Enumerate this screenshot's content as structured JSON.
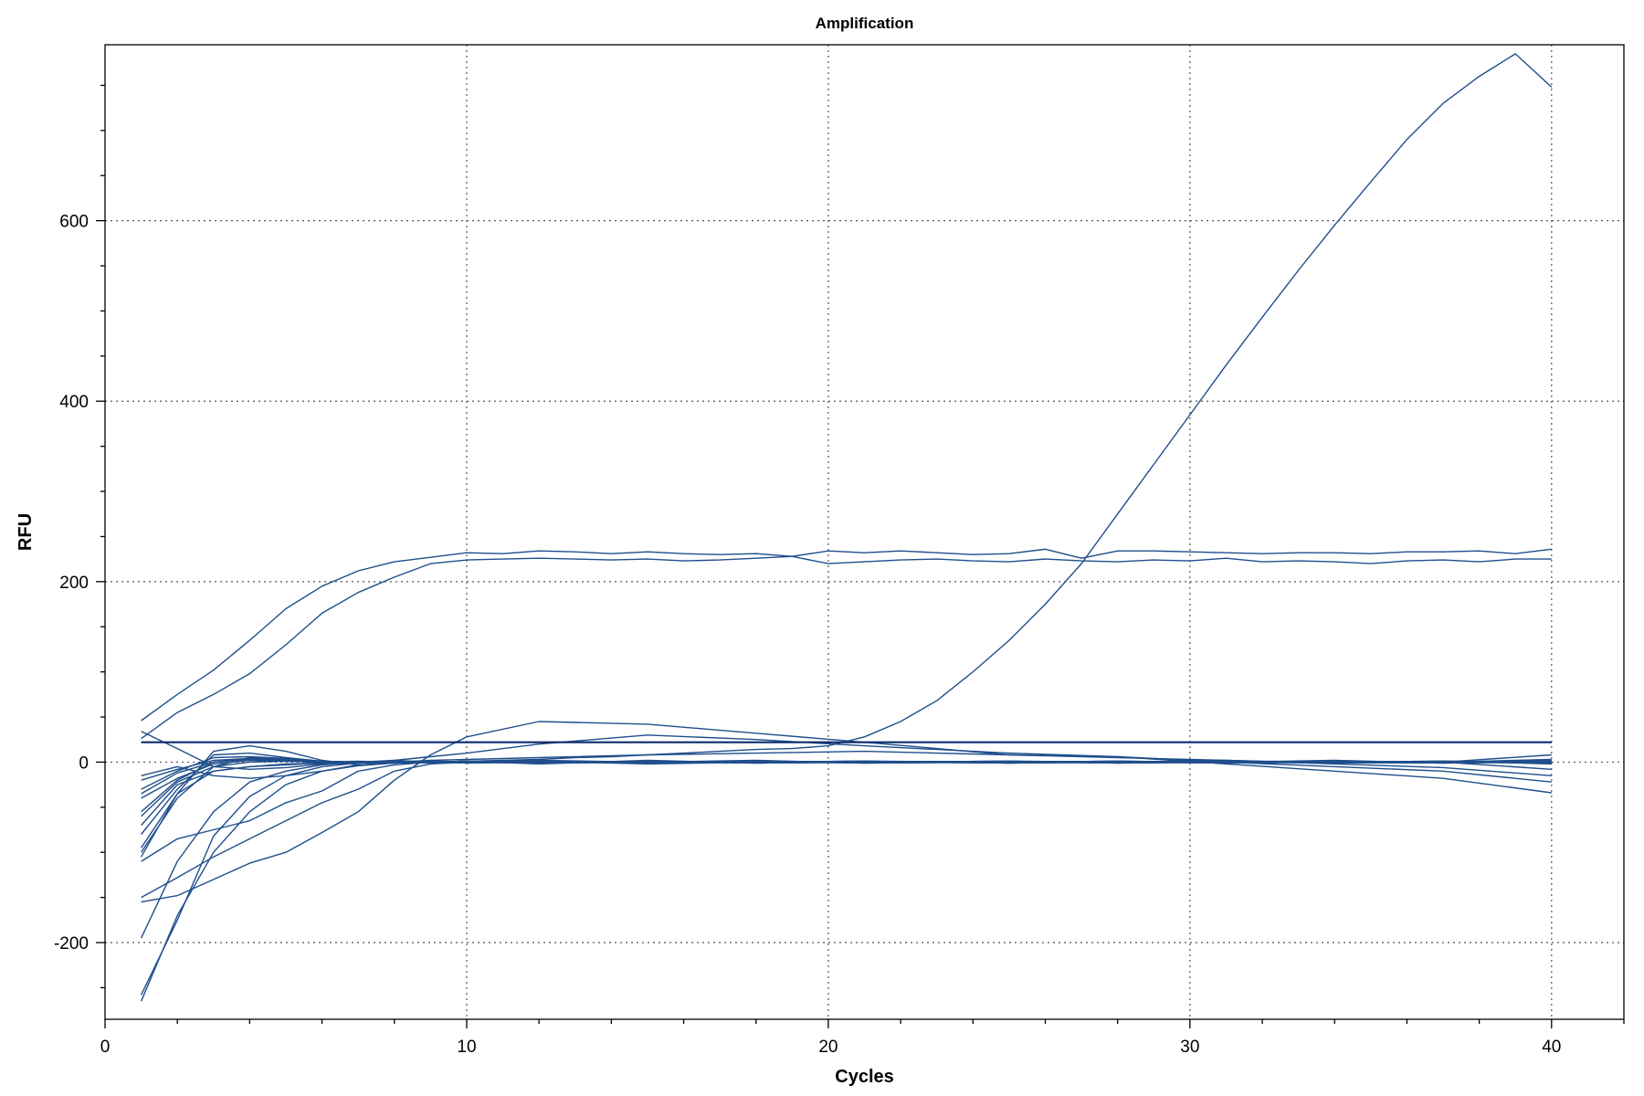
{
  "chart_data": {
    "type": "line",
    "title": "Amplification",
    "xlabel": "Cycles",
    "ylabel": "RFU",
    "xlim": [
      0,
      42
    ],
    "ylim": [
      -285,
      795
    ],
    "x_ticks": [
      0,
      10,
      20,
      30,
      40
    ],
    "y_ticks": [
      -200,
      0,
      200,
      400,
      600
    ],
    "x_minor_step": 2,
    "y_minor_step": 50,
    "grid": true,
    "line_color": "#1f4e8c",
    "threshold": {
      "value": 22,
      "color": "#0d2c6e"
    },
    "series": [
      {
        "x": [
          1,
          2,
          3,
          4,
          5,
          6,
          7,
          8,
          9,
          10,
          12,
          15,
          18,
          21,
          25,
          28,
          31,
          34,
          37,
          40
        ],
        "values": [
          -265,
          -170,
          -100,
          -55,
          -25,
          -10,
          -3,
          -1,
          0,
          1,
          -2,
          2,
          -1,
          0,
          1,
          -1,
          0,
          2,
          -1,
          1
        ]
      },
      {
        "x": [
          1,
          2,
          3,
          4,
          5,
          6,
          7,
          8,
          9,
          10,
          12,
          15,
          18,
          21,
          25,
          28,
          31,
          34,
          37,
          40
        ],
        "values": [
          -258,
          -175,
          -82,
          -38,
          -15,
          -5,
          -1,
          2,
          0,
          -1,
          1,
          -2,
          0,
          1,
          -1,
          0,
          2,
          -1,
          0,
          3
        ]
      },
      {
        "x": [
          1,
          2,
          3,
          4,
          5,
          6,
          7,
          8,
          9,
          10,
          12,
          15,
          18,
          21,
          25,
          28,
          31,
          34,
          37,
          40
        ],
        "values": [
          -195,
          -110,
          -55,
          -22,
          -10,
          -3,
          0,
          1,
          -1,
          0,
          2,
          0,
          -1,
          0,
          1,
          -1,
          0,
          1,
          0,
          2
        ]
      },
      {
        "x": [
          1,
          2,
          3,
          4,
          5,
          6,
          7,
          8,
          9,
          10,
          12,
          15,
          18,
          21,
          25,
          28,
          31,
          34,
          37,
          40
        ],
        "values": [
          -155,
          -148,
          -130,
          -112,
          -100,
          -78,
          -55,
          -20,
          8,
          28,
          45,
          42,
          32,
          22,
          8,
          6,
          -2,
          -10,
          -18,
          -34
        ]
      },
      {
        "x": [
          1,
          2,
          3,
          4,
          5,
          6,
          7,
          8,
          9,
          10,
          12,
          15,
          18,
          21,
          25,
          28,
          31,
          34,
          37,
          40
        ],
        "values": [
          -150,
          -128,
          -105,
          -85,
          -65,
          -45,
          -30,
          -10,
          -2,
          0,
          1,
          -1,
          0,
          1,
          0,
          -1,
          1,
          0,
          -1,
          0
        ]
      },
      {
        "x": [
          1,
          2,
          3,
          4,
          5,
          6,
          7,
          8,
          9,
          10,
          12,
          15,
          18,
          21,
          25,
          28,
          31,
          34,
          37,
          40
        ],
        "values": [
          -110,
          -85,
          -75,
          -65,
          -45,
          -32,
          -10,
          -3,
          0,
          1,
          -1,
          0,
          2,
          -1,
          0,
          1,
          0,
          -1,
          1,
          0
        ]
      },
      {
        "x": [
          1,
          2,
          3,
          4,
          5,
          6,
          7,
          8,
          9,
          10,
          12,
          15,
          18,
          21,
          25,
          28,
          31,
          34,
          37,
          40
        ],
        "values": [
          -100,
          -40,
          -5,
          5,
          3,
          -2,
          -1,
          0,
          1,
          0,
          -1,
          1,
          0,
          -1,
          0,
          1,
          -1,
          0,
          1,
          -1
        ]
      },
      {
        "x": [
          1,
          2,
          3,
          4,
          5,
          6,
          7,
          8,
          9,
          10,
          12,
          15,
          18,
          21,
          25,
          28,
          31,
          34,
          37,
          40
        ],
        "values": [
          -95,
          -35,
          12,
          18,
          12,
          2,
          -3,
          -1,
          0,
          1,
          0,
          -1,
          1,
          0,
          -1,
          0,
          1,
          0,
          -1,
          2
        ]
      },
      {
        "x": [
          1,
          2,
          3,
          4,
          5,
          6,
          7,
          8,
          9,
          10,
          12,
          15,
          18,
          21,
          25,
          28,
          31,
          34,
          37,
          40
        ],
        "values": [
          -80,
          -30,
          8,
          10,
          5,
          1,
          0,
          -1,
          0,
          1,
          -1,
          0,
          1,
          -1,
          0,
          1,
          0,
          -1,
          0,
          1
        ]
      },
      {
        "x": [
          1,
          2,
          3,
          4,
          5,
          6,
          7,
          8,
          9,
          10,
          12,
          15,
          18,
          21,
          25,
          28,
          31,
          34,
          37,
          40
        ],
        "values": [
          -70,
          -25,
          -10,
          -5,
          -3,
          -1,
          0,
          1,
          0,
          -1,
          0,
          1,
          0,
          1,
          -1,
          0,
          1,
          0,
          -1,
          0
        ]
      },
      {
        "x": [
          1,
          2,
          3,
          4,
          5,
          6,
          7,
          8,
          9,
          10,
          12,
          15,
          18,
          21,
          25,
          28,
          31,
          34,
          37,
          40
        ],
        "values": [
          -55,
          -20,
          0,
          4,
          2,
          0,
          -1,
          0,
          1,
          0,
          -1,
          0,
          1,
          0,
          -1,
          0,
          1,
          0,
          0,
          -1
        ]
      },
      {
        "x": [
          1,
          2,
          3,
          4,
          5,
          6,
          7,
          8,
          9,
          10,
          12,
          15,
          18,
          21,
          25,
          28,
          31,
          34,
          37,
          40
        ],
        "values": [
          -30,
          -10,
          5,
          6,
          4,
          1,
          0,
          -1,
          0,
          0,
          1,
          -1,
          0,
          1,
          0,
          -1,
          0,
          1,
          0,
          1
        ]
      },
      {
        "x": [
          1,
          2,
          3,
          4,
          5,
          6,
          7,
          8,
          9,
          10,
          12,
          15,
          18,
          21,
          25,
          28,
          31,
          34,
          37,
          40
        ],
        "values": [
          -15,
          -5,
          -15,
          -18,
          -15,
          -10,
          -4,
          -1,
          0,
          1,
          0,
          1,
          -1,
          0,
          1,
          0,
          -1,
          0,
          1,
          0
        ]
      },
      {
        "x": [
          1,
          2,
          3,
          4,
          5,
          6,
          7,
          8,
          9,
          10,
          12,
          15,
          18,
          21,
          25,
          28,
          31,
          34,
          37,
          40
        ],
        "values": [
          34,
          15,
          -5,
          -8,
          -6,
          -2,
          0,
          1,
          -1,
          0,
          1,
          0,
          -1,
          0,
          1,
          0,
          -1,
          0,
          1,
          -2
        ]
      },
      {
        "x": [
          1,
          2,
          3,
          4,
          5,
          6,
          7,
          8,
          9,
          10,
          12,
          15,
          18,
          21,
          25,
          28,
          31,
          34,
          37,
          40
        ],
        "values": [
          -20,
          -8,
          2,
          4,
          3,
          1,
          0,
          2,
          6,
          10,
          20,
          30,
          25,
          18,
          10,
          6,
          0,
          -5,
          -10,
          -22
        ]
      },
      {
        "x": [
          1,
          2,
          3,
          4,
          5,
          6,
          7,
          8,
          9,
          10,
          12,
          15,
          18,
          21,
          25,
          28,
          31,
          34,
          37,
          40
        ],
        "values": [
          -40,
          -18,
          -2,
          2,
          1,
          0,
          1,
          0,
          2,
          3,
          5,
          8,
          10,
          12,
          8,
          5,
          2,
          -2,
          -6,
          -15
        ]
      },
      {
        "x": [
          1,
          2,
          3,
          4,
          5,
          6,
          7,
          8,
          9,
          10,
          12,
          15,
          18,
          21,
          25,
          28,
          31,
          34,
          37,
          40
        ],
        "values": [
          -35,
          -12,
          0,
          3,
          2,
          0,
          -1,
          1,
          0,
          -1,
          0,
          1,
          0,
          1,
          -1,
          0,
          1,
          -1,
          0,
          8
        ]
      },
      {
        "x": [
          1,
          2,
          3,
          4,
          5,
          6,
          7,
          8,
          9,
          10,
          12,
          15,
          18,
          21,
          25,
          28,
          31,
          34,
          37,
          40
        ],
        "values": [
          -60,
          -22,
          -5,
          0,
          1,
          0,
          -1,
          0,
          1,
          0,
          -1,
          0,
          1,
          -1,
          0,
          1,
          0,
          -1,
          0,
          -8
        ]
      },
      {
        "x": [
          1,
          2,
          3,
          4,
          5,
          6,
          7,
          8,
          9,
          10,
          11,
          12,
          13,
          14,
          15,
          16,
          17,
          18,
          19,
          20,
          21,
          22,
          23,
          24,
          25,
          26,
          27,
          28,
          29,
          30,
          31,
          32,
          33,
          34,
          35,
          36,
          37,
          38,
          39,
          40
        ],
        "values": [
          46,
          75,
          102,
          135,
          170,
          195,
          212,
          222,
          227,
          232,
          231,
          234,
          233,
          231,
          233,
          231,
          230,
          231,
          228,
          234,
          232,
          234,
          232,
          230,
          231,
          236,
          226,
          234,
          234,
          233,
          232,
          231,
          232,
          232,
          231,
          233,
          233,
          234,
          231,
          236
        ]
      },
      {
        "x": [
          1,
          2,
          3,
          4,
          5,
          6,
          7,
          8,
          9,
          10,
          11,
          12,
          13,
          14,
          15,
          16,
          17,
          18,
          19,
          20,
          21,
          22,
          23,
          24,
          25,
          26,
          27,
          28,
          29,
          30,
          31,
          32,
          33,
          34,
          35,
          36,
          37,
          38,
          39,
          40
        ],
        "values": [
          26,
          55,
          75,
          98,
          130,
          165,
          188,
          205,
          220,
          224,
          225,
          226,
          225,
          224,
          225,
          223,
          224,
          226,
          228,
          220,
          222,
          224,
          225,
          223,
          222,
          225,
          223,
          222,
          224,
          223,
          226,
          222,
          223,
          222,
          220,
          223,
          224,
          222,
          225,
          225
        ]
      },
      {
        "x": [
          1,
          2,
          3,
          4,
          5,
          6,
          7,
          8,
          9,
          10,
          11,
          12,
          13,
          14,
          15,
          16,
          17,
          18,
          19,
          20,
          21,
          22,
          23,
          24,
          25,
          26,
          27,
          28,
          29,
          30,
          31,
          32,
          33,
          34,
          35,
          36,
          37,
          38,
          39,
          40
        ],
        "values": [
          -105,
          -35,
          -10,
          -5,
          -2,
          -1,
          0,
          1,
          0,
          1,
          2,
          3,
          5,
          6,
          8,
          10,
          12,
          14,
          15,
          18,
          28,
          45,
          68,
          100,
          135,
          175,
          220,
          275,
          330,
          385,
          440,
          493,
          545,
          595,
          643,
          690,
          730,
          760,
          785,
          748
        ]
      }
    ]
  }
}
